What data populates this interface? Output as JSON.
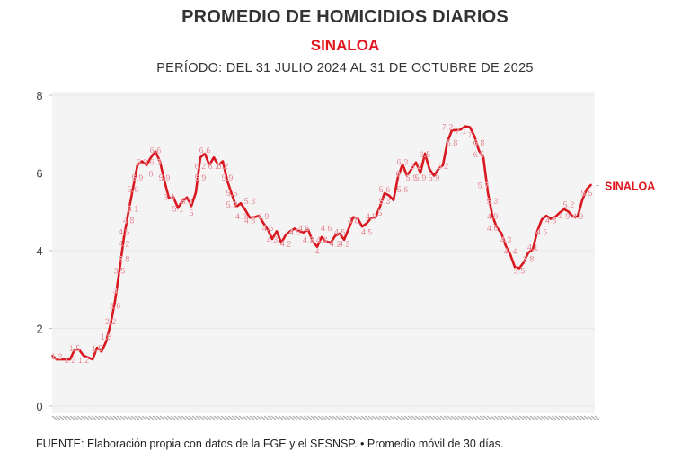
{
  "header": {
    "title": "PROMEDIO DE HOMICIDIOS DIARIOS",
    "subtitle": "SINALOA",
    "period": "PERÍODO: DEL 31 JULIO 2024 AL 31 DE OCTUBRE DE 2025"
  },
  "footer": "FUENTE: Elaboración propia con datos de la FGE y el SESNSP. • Promedio móvil de 30 días.",
  "colors": {
    "line": "#d9171f",
    "label": "#c9283a",
    "plot_bg": "#f4f4f4",
    "grid": "#e9e9e9",
    "series_label": "#e0161f"
  },
  "chart_data": {
    "type": "line",
    "title": "PROMEDIO DE HOMICIDIOS DIARIOS",
    "x_start": "2024-07-31",
    "x_end": "2025-10-31",
    "ylim": [
      0,
      8
    ],
    "yticks": [
      "0",
      "2",
      "4",
      "6",
      "8"
    ],
    "grid": true,
    "legend": "end-of-line label",
    "series": [
      {
        "name": "SINALOA",
        "values": [
          1.3,
          1.2,
          1.2,
          1.2,
          1.2,
          1.45,
          1.45,
          1.3,
          1.25,
          1.2,
          1.5,
          1.4,
          1.65,
          2.1,
          2.7,
          3.5,
          4.35,
          5.0,
          5.6,
          6.2,
          6.3,
          6.2,
          6.4,
          6.55,
          6.3,
          5.8,
          5.35,
          5.38,
          5.1,
          5.27,
          5.37,
          5.15,
          5.5,
          6.4,
          6.5,
          6.2,
          6.4,
          6.2,
          6.3,
          5.8,
          5.45,
          5.13,
          5.22,
          5.05,
          4.85,
          4.86,
          4.9,
          4.72,
          4.54,
          4.3,
          4.5,
          4.2,
          4.4,
          4.5,
          4.57,
          4.5,
          4.47,
          4.54,
          4.24,
          4.1,
          4.35,
          4.24,
          4.2,
          4.38,
          4.44,
          4.28,
          4.56,
          4.86,
          4.84,
          4.62,
          4.7,
          4.84,
          4.86,
          5.14,
          5.48,
          5.42,
          5.3,
          5.9,
          6.22,
          5.93,
          6.1,
          6.27,
          6.0,
          6.5,
          6.1,
          5.93,
          6.1,
          6.2,
          6.8,
          7.1,
          7.1,
          7.12,
          7.2,
          7.18,
          6.95,
          6.58,
          6.4,
          5.5,
          4.9,
          4.6,
          4.45,
          4.12,
          3.9,
          3.58,
          3.55,
          3.7,
          3.95,
          4.03,
          4.5,
          4.8,
          4.9,
          4.82,
          4.87,
          4.98,
          5.07,
          5.0,
          4.87,
          4.88,
          5.3,
          5.58,
          5.7
        ]
      }
    ],
    "data_labels": [
      {
        "text": "1.3",
        "point": 1
      },
      {
        "text": "1.2",
        "point": 4
      },
      {
        "text": "1.2",
        "point": 7
      },
      {
        "text": "1.5",
        "point": 5
      },
      {
        "text": "1.5",
        "point": 10
      },
      {
        "text": "1.8",
        "point": 12
      },
      {
        "text": "2.2",
        "point": 13
      },
      {
        "text": "2.6",
        "point": 14
      },
      {
        "text": "3",
        "point": 14
      },
      {
        "text": "3.5",
        "point": 15
      },
      {
        "text": "3.8",
        "point": 16
      },
      {
        "text": "4.2",
        "point": 16
      },
      {
        "text": "4.5",
        "point": 16
      },
      {
        "text": "4.8",
        "point": 17
      },
      {
        "text": "5.1",
        "point": 18
      },
      {
        "text": "5.6",
        "point": 18
      },
      {
        "text": "5.9",
        "point": 19
      },
      {
        "text": "6.3",
        "point": 20
      },
      {
        "text": "6",
        "point": 22
      },
      {
        "text": "6.3",
        "point": 23
      },
      {
        "text": "6.6",
        "point": 23
      },
      {
        "text": "5.9",
        "point": 25
      },
      {
        "text": "5.4",
        "point": 26
      },
      {
        "text": "5.1",
        "point": 28
      },
      {
        "text": "5.3",
        "point": 30
      },
      {
        "text": "5",
        "point": 31
      },
      {
        "text": "5.9",
        "point": 33
      },
      {
        "text": "6.2",
        "point": 33
      },
      {
        "text": "6.6",
        "point": 34
      },
      {
        "text": "6.2",
        "point": 36
      },
      {
        "text": "6.2",
        "point": 38
      },
      {
        "text": "5.9",
        "point": 39
      },
      {
        "text": "5.5",
        "point": 40
      },
      {
        "text": "5.2",
        "point": 40
      },
      {
        "text": "4.9",
        "point": 42
      },
      {
        "text": "5.3",
        "point": 44
      },
      {
        "text": "4.8",
        "point": 44
      },
      {
        "text": "4.9",
        "point": 47
      },
      {
        "text": "4.6",
        "point": 48
      },
      {
        "text": "4.3",
        "point": 49
      },
      {
        "text": "4.2",
        "point": 52
      },
      {
        "text": "4.5",
        "point": 54
      },
      {
        "text": "4.6",
        "point": 56
      },
      {
        "text": "4.3",
        "point": 57
      },
      {
        "text": "4",
        "point": 59
      },
      {
        "text": "4.3",
        "point": 60
      },
      {
        "text": "4.6",
        "point": 61
      },
      {
        "text": "4.2",
        "point": 63
      },
      {
        "text": "4.5",
        "point": 64
      },
      {
        "text": "4.2",
        "point": 65
      },
      {
        "text": "4.8",
        "point": 67
      },
      {
        "text": "4.5",
        "point": 70
      },
      {
        "text": "4.9",
        "point": 71
      },
      {
        "text": "5",
        "point": 73
      },
      {
        "text": "5.3",
        "point": 74
      },
      {
        "text": "5.6",
        "point": 74
      },
      {
        "text": "6",
        "point": 77
      },
      {
        "text": "6.3",
        "point": 78
      },
      {
        "text": "5.6",
        "point": 78
      },
      {
        "text": "5.9",
        "point": 80
      },
      {
        "text": "6.2",
        "point": 81
      },
      {
        "text": "5.9",
        "point": 82
      },
      {
        "text": "6.5",
        "point": 83
      },
      {
        "text": "5.9",
        "point": 85
      },
      {
        "text": "6.2",
        "point": 87
      },
      {
        "text": "7.2",
        "point": 88
      },
      {
        "text": "6.8",
        "point": 89
      },
      {
        "text": "7.1",
        "point": 91
      },
      {
        "text": "7",
        "point": 93
      },
      {
        "text": "6.8",
        "point": 95
      },
      {
        "text": "6.5",
        "point": 95
      },
      {
        "text": "5.7",
        "point": 96
      },
      {
        "text": "5.3",
        "point": 98
      },
      {
        "text": "4.9",
        "point": 98
      },
      {
        "text": "4.6",
        "point": 98
      },
      {
        "text": "4.3",
        "point": 101
      },
      {
        "text": "4",
        "point": 101
      },
      {
        "text": "4",
        "point": 103
      },
      {
        "text": "3.5",
        "point": 104
      },
      {
        "text": "3.8",
        "point": 106
      },
      {
        "text": "4.1",
        "point": 107
      },
      {
        "text": "4.5",
        "point": 109
      },
      {
        "text": "4.8",
        "point": 111
      },
      {
        "text": "4.9",
        "point": 114
      },
      {
        "text": "5.2",
        "point": 115
      },
      {
        "text": "4.9",
        "point": 117
      },
      {
        "text": "5.5",
        "point": 119
      }
    ]
  }
}
